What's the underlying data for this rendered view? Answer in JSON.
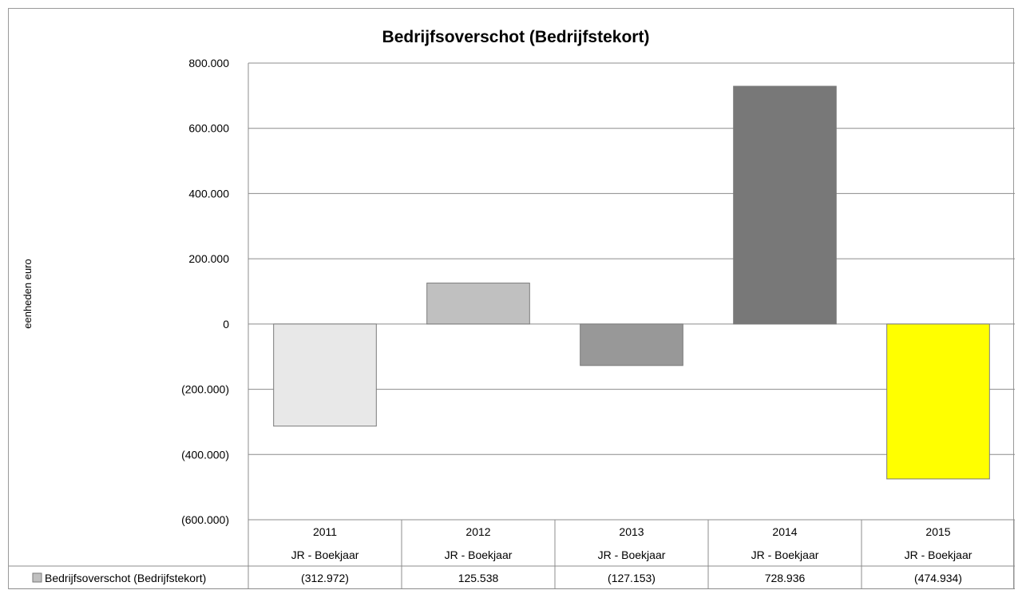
{
  "chart_data": {
    "type": "bar",
    "title": "Bedrijfsoverschot (Bedrijfstekort)",
    "ylabel": "eenheden euro",
    "xlabel": "",
    "ylim": [
      -600000,
      800000
    ],
    "yticks": [
      800000,
      600000,
      400000,
      200000,
      0,
      -200000,
      -400000,
      -600000
    ],
    "ytick_labels": [
      "800.000",
      "600.000",
      "400.000",
      "200.000",
      "0",
      "(200.000)",
      "(400.000)",
      "(600.000)"
    ],
    "categories": [
      "2011",
      "2012",
      "2013",
      "2014",
      "2015"
    ],
    "category_sublabels": [
      "JR - Boekjaar",
      "JR - Boekjaar",
      "JR - Boekjaar",
      "JR - Boekjaar",
      "JR - Boekjaar"
    ],
    "grid": true,
    "series": [
      {
        "name": "Bedrijfsoverschot (Bedrijfstekort)",
        "values": [
          -312972,
          125538,
          -127153,
          728936,
          -474934
        ],
        "value_labels": [
          "(312.972)",
          "125.538",
          "(127.153)",
          "728.936",
          "(474.934)"
        ],
        "bar_colors": [
          "#e8e8e8",
          "#c0c0c0",
          "#989898",
          "#787878",
          "#ffff00"
        ],
        "legend_color": "#c0c0c0"
      }
    ],
    "legend": "data-table"
  }
}
